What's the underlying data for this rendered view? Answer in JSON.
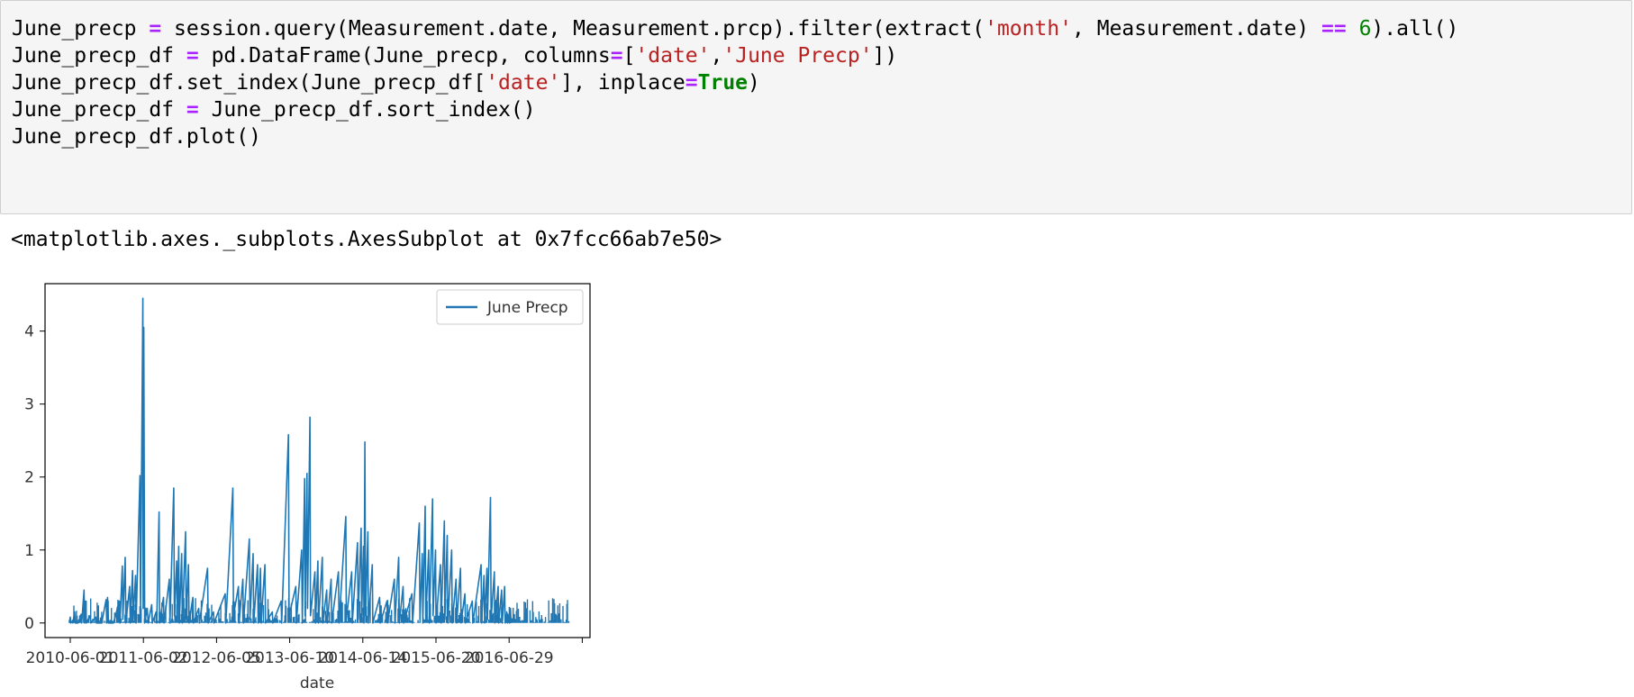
{
  "code_cell": {
    "lines": [
      [
        {
          "t": "June_precp ",
          "c": ""
        },
        {
          "t": "=",
          "c": "op"
        },
        {
          "t": " session.query(Measurement.date, Measurement.prcp).filter(extract(",
          "c": ""
        },
        {
          "t": "'month'",
          "c": "str"
        },
        {
          "t": ", Measurement.date) ",
          "c": ""
        },
        {
          "t": "==",
          "c": "op"
        },
        {
          "t": " ",
          "c": ""
        },
        {
          "t": "6",
          "c": "num"
        },
        {
          "t": ").all()",
          "c": ""
        }
      ],
      [
        {
          "t": "June_precp_df ",
          "c": ""
        },
        {
          "t": "=",
          "c": "op"
        },
        {
          "t": " pd.DataFrame(June_precp, columns",
          "c": ""
        },
        {
          "t": "=",
          "c": "op"
        },
        {
          "t": "[",
          "c": ""
        },
        {
          "t": "'date'",
          "c": "str"
        },
        {
          "t": ",",
          "c": ""
        },
        {
          "t": "'June Precp'",
          "c": "str"
        },
        {
          "t": "])",
          "c": ""
        }
      ],
      [
        {
          "t": "June_precp_df.set_index(June_precp_df[",
          "c": ""
        },
        {
          "t": "'date'",
          "c": "str"
        },
        {
          "t": "], inplace",
          "c": ""
        },
        {
          "t": "=",
          "c": "op"
        },
        {
          "t": "True",
          "c": "kw"
        },
        {
          "t": ")",
          "c": ""
        }
      ],
      [
        {
          "t": "June_precp_df ",
          "c": ""
        },
        {
          "t": "=",
          "c": "op"
        },
        {
          "t": " June_precp_df.sort_index()",
          "c": ""
        }
      ],
      [
        {
          "t": "June_precp_df.plot()",
          "c": ""
        }
      ]
    ]
  },
  "output": {
    "text": "<matplotlib.axes._subplots.AxesSubplot at 0x7fcc66ab7e50>"
  },
  "colors": {
    "line": "#1f77b4",
    "operator": "#aa22ff",
    "string": "#ba2121",
    "number": "#008000",
    "cell_background": "#f5f5f5"
  },
  "chart_data": {
    "type": "line",
    "xlabel": "date",
    "ylabel": "",
    "ylim": [
      -0.2,
      4.65
    ],
    "yticks": [
      0,
      1,
      2,
      3,
      4
    ],
    "xtick_labels": [
      "2010-06-01",
      "2011-06-02",
      "2012-06-05",
      "2013-06-10",
      "2014-06-14",
      "2015-06-20",
      "2016-06-29",
      ""
    ],
    "legend": {
      "labels": [
        "June Precp"
      ],
      "position": "upper right"
    },
    "series": [
      {
        "name": "June Precp",
        "x_range": [
          0,
          1700
        ],
        "values": [
          [
            0,
            0.0
          ],
          [
            3,
            0.08
          ],
          [
            5,
            0.0
          ],
          [
            10,
            0.02
          ],
          [
            12,
            0.0
          ],
          [
            18,
            0.15
          ],
          [
            20,
            0.0
          ],
          [
            30,
            0.0
          ],
          [
            40,
            0.12
          ],
          [
            42,
            0.0
          ],
          [
            50,
            0.45
          ],
          [
            52,
            0.0
          ],
          [
            55,
            0.3
          ],
          [
            58,
            0.0
          ],
          [
            70,
            0.1
          ],
          [
            73,
            0.0
          ],
          [
            90,
            0.08
          ],
          [
            92,
            0.0
          ],
          [
            110,
            0.0
          ],
          [
            125,
            0.32
          ],
          [
            127,
            0.0
          ],
          [
            130,
            0.35
          ],
          [
            133,
            0.0
          ],
          [
            150,
            0.0
          ],
          [
            170,
            0.3
          ],
          [
            172,
            0.0
          ],
          [
            180,
            0.78
          ],
          [
            182,
            0.05
          ],
          [
            190,
            0.9
          ],
          [
            192,
            0.0
          ],
          [
            205,
            0.5
          ],
          [
            207,
            0.0
          ],
          [
            215,
            0.72
          ],
          [
            217,
            0.05
          ],
          [
            225,
            0.65
          ],
          [
            227,
            0.0
          ],
          [
            240,
            2.02
          ],
          [
            242,
            0.1
          ],
          [
            250,
            4.45
          ],
          [
            251,
            0.2
          ],
          [
            253,
            4.05
          ],
          [
            256,
            0.0
          ],
          [
            265,
            0.2
          ],
          [
            268,
            0.0
          ],
          [
            280,
            0.25
          ],
          [
            282,
            0.0
          ],
          [
            295,
            0.15
          ],
          [
            297,
            0.0
          ],
          [
            305,
            1.52
          ],
          [
            307,
            0.0
          ],
          [
            320,
            0.35
          ],
          [
            322,
            0.0
          ],
          [
            340,
            0.6
          ],
          [
            342,
            0.0
          ],
          [
            355,
            1.85
          ],
          [
            357,
            0.1
          ],
          [
            365,
            0.85
          ],
          [
            367,
            0.05
          ],
          [
            372,
            1.05
          ],
          [
            374,
            0.0
          ],
          [
            382,
            0.95
          ],
          [
            384,
            0.0
          ],
          [
            395,
            1.25
          ],
          [
            397,
            0.05
          ],
          [
            405,
            0.8
          ],
          [
            407,
            0.0
          ],
          [
            420,
            0.35
          ],
          [
            422,
            0.0
          ],
          [
            440,
            0.2
          ],
          [
            442,
            0.0
          ],
          [
            470,
            0.75
          ],
          [
            472,
            0.0
          ],
          [
            490,
            0.15
          ],
          [
            492,
            0.0
          ],
          [
            530,
            0.4
          ],
          [
            532,
            0.0
          ],
          [
            556,
            1.85
          ],
          [
            558,
            0.1
          ],
          [
            575,
            0.5
          ],
          [
            577,
            0.0
          ],
          [
            590,
            0.6
          ],
          [
            592,
            0.0
          ],
          [
            612,
            1.15
          ],
          [
            614,
            0.05
          ],
          [
            625,
            0.95
          ],
          [
            627,
            0.0
          ],
          [
            640,
            0.8
          ],
          [
            642,
            0.0
          ],
          [
            650,
            0.75
          ],
          [
            652,
            0.0
          ],
          [
            665,
            0.8
          ],
          [
            667,
            0.0
          ],
          [
            690,
            0.15
          ],
          [
            692,
            0.0
          ],
          [
            720,
            0.3
          ],
          [
            722,
            0.0
          ],
          [
            745,
            2.58
          ],
          [
            747,
            0.1
          ],
          [
            770,
            0.5
          ],
          [
            772,
            0.0
          ],
          [
            790,
            1.0
          ],
          [
            792,
            0.0
          ],
          [
            800,
            1.98
          ],
          [
            802,
            0.1
          ],
          [
            808,
            2.05
          ],
          [
            810,
            0.2
          ],
          [
            818,
            2.82
          ],
          [
            820,
            0.1
          ],
          [
            835,
            0.7
          ],
          [
            837,
            0.0
          ],
          [
            845,
            0.85
          ],
          [
            847,
            0.0
          ],
          [
            860,
            0.9
          ],
          [
            862,
            0.0
          ],
          [
            875,
            0.45
          ],
          [
            877,
            0.0
          ],
          [
            890,
            0.6
          ],
          [
            892,
            0.0
          ],
          [
            915,
            0.7
          ],
          [
            917,
            0.0
          ],
          [
            940,
            1.46
          ],
          [
            942,
            0.05
          ],
          [
            960,
            0.7
          ],
          [
            962,
            0.0
          ],
          [
            980,
            1.1
          ],
          [
            982,
            0.05
          ],
          [
            992,
            1.3
          ],
          [
            994,
            0.1
          ],
          [
            1000,
            1.05
          ],
          [
            1002,
            0.0
          ],
          [
            1005,
            2.48
          ],
          [
            1007,
            0.1
          ],
          [
            1015,
            1.25
          ],
          [
            1017,
            0.0
          ],
          [
            1030,
            0.8
          ],
          [
            1032,
            0.0
          ],
          [
            1055,
            0.35
          ],
          [
            1057,
            0.0
          ],
          [
            1080,
            0.3
          ],
          [
            1082,
            0.0
          ],
          [
            1105,
            0.6
          ],
          [
            1107,
            0.0
          ],
          [
            1120,
            0.9
          ],
          [
            1122,
            0.0
          ],
          [
            1135,
            0.5
          ],
          [
            1137,
            0.0
          ],
          [
            1165,
            0.4
          ],
          [
            1167,
            0.0
          ],
          [
            1190,
            1.37
          ],
          [
            1192,
            0.05
          ],
          [
            1200,
            0.95
          ],
          [
            1202,
            0.0
          ],
          [
            1210,
            1.6
          ],
          [
            1212,
            0.05
          ],
          [
            1222,
            1.0
          ],
          [
            1224,
            0.0
          ],
          [
            1235,
            1.7
          ],
          [
            1237,
            0.1
          ],
          [
            1245,
            1.0
          ],
          [
            1247,
            0.0
          ],
          [
            1262,
            0.8
          ],
          [
            1264,
            0.0
          ],
          [
            1275,
            1.4
          ],
          [
            1277,
            0.05
          ],
          [
            1285,
            1.2
          ],
          [
            1287,
            0.0
          ],
          [
            1300,
            1.0
          ],
          [
            1302,
            0.0
          ],
          [
            1315,
            0.6
          ],
          [
            1317,
            0.0
          ],
          [
            1330,
            0.75
          ],
          [
            1332,
            0.0
          ],
          [
            1345,
            0.4
          ],
          [
            1347,
            0.0
          ],
          [
            1370,
            0.3
          ],
          [
            1372,
            0.0
          ],
          [
            1400,
            0.8
          ],
          [
            1402,
            0.0
          ],
          [
            1410,
            0.65
          ],
          [
            1412,
            0.0
          ],
          [
            1420,
            0.75
          ],
          [
            1422,
            0.05
          ],
          [
            1432,
            1.72
          ],
          [
            1434,
            0.05
          ],
          [
            1445,
            0.7
          ],
          [
            1447,
            0.0
          ],
          [
            1458,
            0.5
          ],
          [
            1460,
            0.0
          ],
          [
            1470,
            0.45
          ],
          [
            1472,
            0.0
          ],
          [
            1480,
            0.5
          ],
          [
            1482,
            0.0
          ],
          [
            1488,
            0.08
          ],
          [
            1490,
            0.0
          ],
          [
            1495,
            0.12
          ],
          [
            1497,
            0.0
          ],
          [
            1500,
            0.2
          ],
          [
            1502,
            0.0
          ]
        ]
      }
    ]
  }
}
